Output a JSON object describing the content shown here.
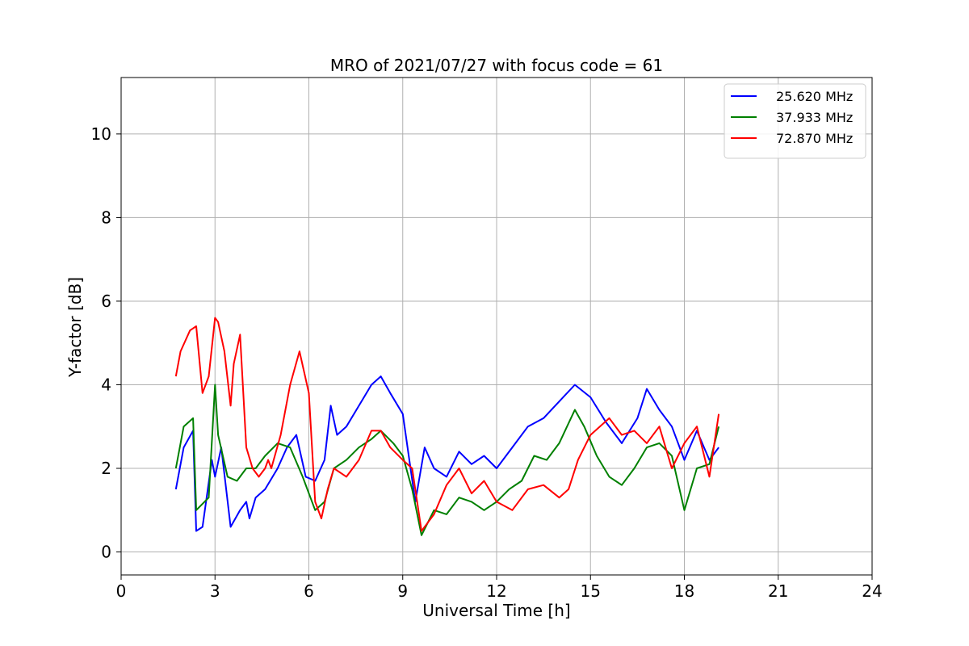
{
  "chart_data": {
    "type": "line",
    "title": "MRO of 2021/07/27 with focus code = 61",
    "xlabel": "Universal Time [h]",
    "ylabel": "Y-factor [dB]",
    "xlim": [
      0,
      24
    ],
    "ylim": [
      -0.55,
      11.35
    ],
    "xticks": [
      0,
      3,
      6,
      9,
      12,
      15,
      18,
      21,
      24
    ],
    "yticks": [
      0,
      2,
      4,
      6,
      8,
      10
    ],
    "grid": true,
    "legend_position": "top-right",
    "series": [
      {
        "name": "25.620 MHz",
        "color": "#0000ff",
        "x": [
          1.75,
          2.0,
          2.3,
          2.4,
          2.6,
          2.9,
          3.0,
          3.2,
          3.5,
          3.8,
          4.0,
          4.1,
          4.3,
          4.6,
          5.0,
          5.3,
          5.6,
          5.9,
          6.2,
          6.5,
          6.7,
          6.9,
          7.2,
          7.6,
          8.0,
          8.3,
          8.6,
          9.0,
          9.4,
          9.7,
          10.0,
          10.4,
          10.8,
          11.2,
          11.6,
          12.0,
          12.5,
          13.0,
          13.5,
          14.0,
          14.5,
          15.0,
          15.5,
          16.0,
          16.5,
          16.8,
          17.2,
          17.6,
          18.0,
          18.4,
          18.8,
          19.1
        ],
        "y": [
          1.5,
          2.5,
          2.9,
          0.5,
          0.6,
          2.2,
          1.8,
          2.5,
          0.6,
          1.0,
          1.2,
          0.8,
          1.3,
          1.5,
          2.0,
          2.5,
          2.8,
          1.8,
          1.7,
          2.2,
          3.5,
          2.8,
          3.0,
          3.5,
          4.0,
          4.2,
          3.8,
          3.3,
          1.2,
          2.5,
          2.0,
          1.8,
          2.4,
          2.1,
          2.3,
          2.0,
          2.5,
          3.0,
          3.2,
          3.6,
          4.0,
          3.7,
          3.1,
          2.6,
          3.2,
          3.9,
          3.4,
          3.0,
          2.2,
          2.9,
          2.2,
          2.5
        ]
      },
      {
        "name": "37.933 MHz",
        "color": "#008000",
        "x": [
          1.75,
          2.0,
          2.3,
          2.4,
          2.8,
          3.0,
          3.1,
          3.4,
          3.7,
          4.0,
          4.3,
          4.6,
          5.0,
          5.4,
          5.8,
          6.2,
          6.5,
          6.8,
          7.2,
          7.6,
          8.0,
          8.3,
          8.7,
          9.0,
          9.3,
          9.6,
          10.0,
          10.4,
          10.8,
          11.2,
          11.6,
          12.0,
          12.4,
          12.8,
          13.2,
          13.6,
          14.0,
          14.5,
          14.8,
          15.2,
          15.6,
          16.0,
          16.4,
          16.8,
          17.2,
          17.6,
          18.0,
          18.4,
          18.8,
          19.1
        ],
        "y": [
          2.0,
          3.0,
          3.2,
          1.0,
          1.3,
          4.0,
          2.8,
          1.8,
          1.7,
          2.0,
          2.0,
          2.3,
          2.6,
          2.5,
          1.8,
          1.0,
          1.2,
          2.0,
          2.2,
          2.5,
          2.7,
          2.9,
          2.6,
          2.3,
          1.5,
          0.4,
          1.0,
          0.9,
          1.3,
          1.2,
          1.0,
          1.2,
          1.5,
          1.7,
          2.3,
          2.2,
          2.6,
          3.4,
          3.0,
          2.3,
          1.8,
          1.6,
          2.0,
          2.5,
          2.6,
          2.3,
          1.0,
          2.0,
          2.1,
          3.0
        ]
      },
      {
        "name": "72.870 MHz",
        "color": "#ff0000",
        "x": [
          1.75,
          1.9,
          2.2,
          2.4,
          2.6,
          2.8,
          3.0,
          3.1,
          3.3,
          3.5,
          3.6,
          3.8,
          4.0,
          4.2,
          4.4,
          4.6,
          4.7,
          4.8,
          5.1,
          5.4,
          5.7,
          6.0,
          6.2,
          6.4,
          6.6,
          6.8,
          7.2,
          7.6,
          8.0,
          8.3,
          8.6,
          9.0,
          9.3,
          9.6,
          10.0,
          10.4,
          10.8,
          11.2,
          11.6,
          12.0,
          12.5,
          13.0,
          13.5,
          14.0,
          14.3,
          14.6,
          15.0,
          15.3,
          15.6,
          16.0,
          16.4,
          16.8,
          17.2,
          17.6,
          18.0,
          18.4,
          18.8,
          19.1
        ],
        "y": [
          4.2,
          4.8,
          5.3,
          5.4,
          3.8,
          4.2,
          5.6,
          5.5,
          4.8,
          3.5,
          4.5,
          5.2,
          2.5,
          2.0,
          1.8,
          2.0,
          2.2,
          2.0,
          2.8,
          4.0,
          4.8,
          3.8,
          1.2,
          0.8,
          1.5,
          2.0,
          1.8,
          2.2,
          2.9,
          2.9,
          2.5,
          2.2,
          2.0,
          0.5,
          0.9,
          1.6,
          2.0,
          1.4,
          1.7,
          1.2,
          1.0,
          1.5,
          1.6,
          1.3,
          1.5,
          2.2,
          2.8,
          3.0,
          3.2,
          2.8,
          2.9,
          2.6,
          3.0,
          2.0,
          2.6,
          3.0,
          1.8,
          3.3
        ]
      }
    ]
  }
}
